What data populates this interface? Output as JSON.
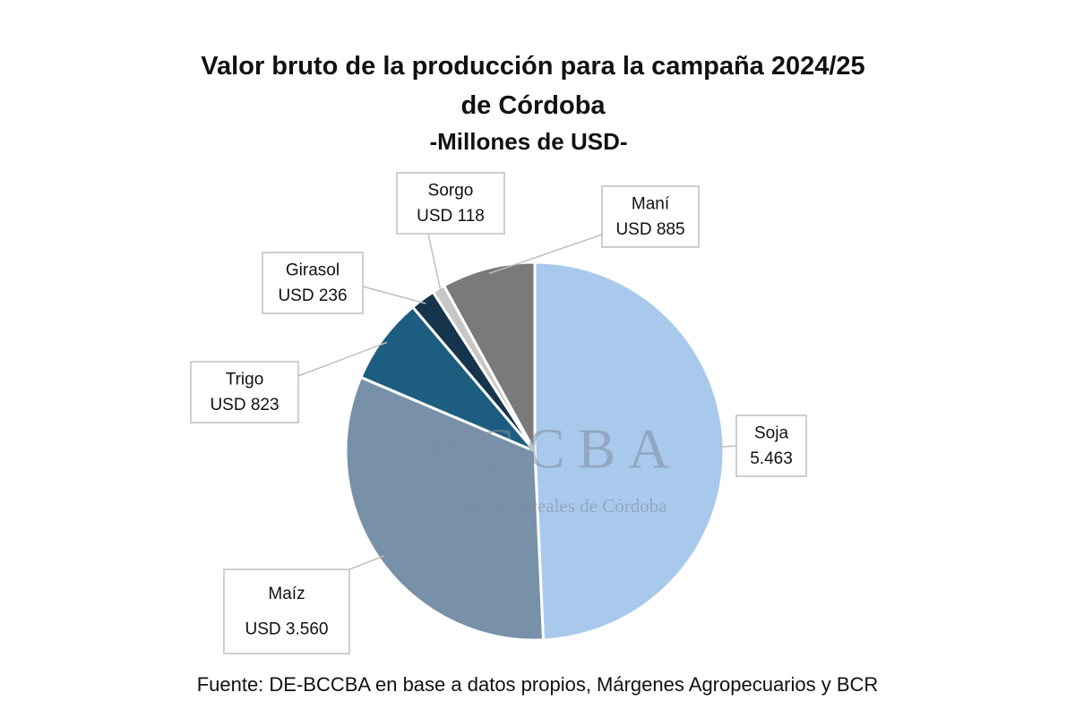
{
  "chart_data": {
    "type": "pie",
    "title": "Valor bruto de la producción para la campaña 2024/25 de Córdoba",
    "subtitle": "-Millones de USD-",
    "categories": [
      "Soja",
      "Maíz",
      "Trigo",
      "Girasol",
      "Sorgo",
      "Maní"
    ],
    "values": [
      5463,
      3560,
      823,
      236,
      118,
      885
    ],
    "value_labels": [
      "5.463",
      "USD 3.560",
      "USD 823",
      "USD 236",
      "USD 118",
      "USD 885"
    ],
    "colors": [
      "#a9c9ec",
      "#7890a8",
      "#1d5e80",
      "#16344b",
      "#c6c6c6",
      "#7a7a7a"
    ],
    "watermark": {
      "logo": "BCCBA",
      "name": "Bolsa de Cereales de Córdoba"
    },
    "source": "Fuente: DE-BCCBA en base a datos propios, Márgenes Agropecuarios y BCR"
  }
}
